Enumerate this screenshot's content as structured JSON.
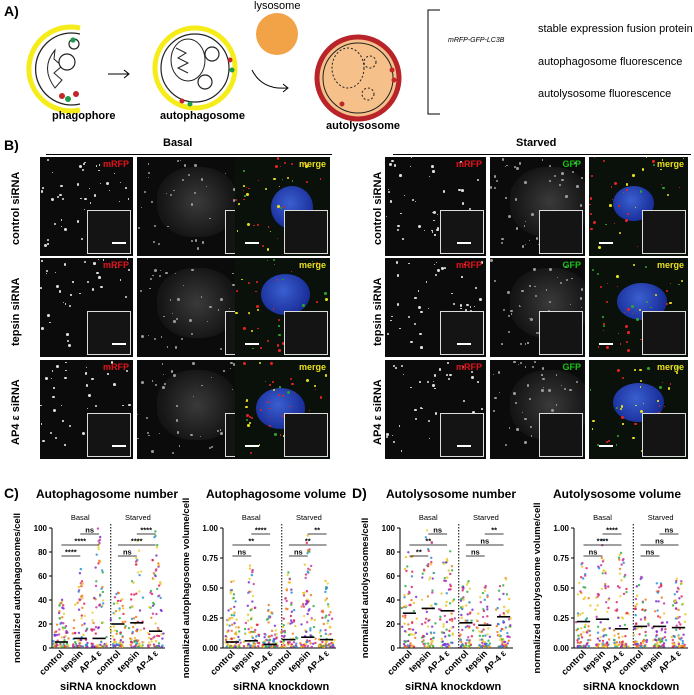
{
  "panel_labels": {
    "a": "A)",
    "b": "B)",
    "c": "C)",
    "d": "D)"
  },
  "schematic": {
    "stages": [
      "phagophore",
      "autophagosome",
      "autolysosome"
    ],
    "lysosome_label": "lysosome",
    "legend": {
      "fusion_construct": "mRFP-GFP-LC3B",
      "items": [
        "stable expression fusion protein",
        "autophagosome fluorescence",
        "autolysosome fluorescence"
      ],
      "colors": {
        "red": "#c0262a",
        "green": "#1e9a4a",
        "grey": "#6b6b6b",
        "yellow": "#f5ec19",
        "lysosome": "#f2a348"
      }
    }
  },
  "microscopy": {
    "conditions": [
      "Basal",
      "Starved"
    ],
    "channels": [
      "mRFP",
      "GFP",
      "merge"
    ],
    "channel_colors": {
      "mRFP": "#e3131b",
      "GFP": "#19c319",
      "merge": "#e8e01d"
    },
    "rows": [
      "control siRNA",
      "tepsin siRNA",
      "AP4 ε siRNA"
    ]
  },
  "charts": [
    {
      "id": "c1",
      "title": "Autophagosome number",
      "ylabel": "normalized autophagosomes/cell",
      "groups": [
        "Basal",
        "Starved"
      ],
      "xlabel": "siRNA knockdown",
      "chart_data": {
        "type": "scatter",
        "categories": [
          "control",
          "tepsin",
          "AP-4 ε",
          "control",
          "tepsin",
          "AP-4 ε"
        ],
        "ylim": [
          0,
          100
        ],
        "yticks": [
          "0",
          "20",
          "40",
          "60",
          "80",
          "100"
        ],
        "medians": [
          5,
          8,
          8,
          20,
          21,
          14
        ],
        "spread_max": [
          40,
          68,
          100,
          45,
          90,
          100
        ]
      },
      "sig": [
        "****",
        "****",
        "ns",
        "ns",
        "****",
        "****"
      ]
    },
    {
      "id": "c2",
      "title": "Autophagosome volume",
      "ylabel": "normalized autophagosome volume/cell",
      "groups": [
        "Basal",
        "Starved"
      ],
      "xlabel": "siRNA knockdown",
      "chart_data": {
        "type": "scatter",
        "categories": [
          "control",
          "tepsin",
          "AP-4 ε",
          "control",
          "tepsin",
          "AP-4 ε"
        ],
        "ylim": [
          0,
          1
        ],
        "yticks": [
          "0.00",
          "0.25",
          "0.50",
          "0.75",
          "1.00"
        ],
        "medians": [
          0.05,
          0.06,
          0.03,
          0.07,
          0.09,
          0.07
        ],
        "spread_max": [
          0.55,
          0.68,
          0.38,
          0.65,
          1.0,
          0.55
        ]
      },
      "sig": [
        "ns",
        "**",
        "****",
        "ns",
        "**",
        "**"
      ]
    },
    {
      "id": "d1",
      "title": "Autolysosome number",
      "ylabel": "normalized autolysosomes/cell",
      "groups": [
        "Basal",
        "Starved"
      ],
      "xlabel": "siRNA knockdown",
      "chart_data": {
        "type": "scatter",
        "categories": [
          "control",
          "tepsin",
          "AP-4 ε",
          "control",
          "tepsin",
          "AP-4 ε"
        ],
        "ylim": [
          0,
          100
        ],
        "yticks": [
          "0",
          "20",
          "40",
          "60",
          "80",
          "100"
        ],
        "medians": [
          29,
          33,
          31,
          21,
          19,
          26
        ],
        "spread_max": [
          80,
          98,
          90,
          55,
          52,
          60
        ]
      },
      "sig": [
        "**",
        "**",
        "ns",
        "ns",
        "ns",
        "**"
      ]
    },
    {
      "id": "d2",
      "title": "Autolysosome volume",
      "ylabel": "normalized autolysosome volume/cell",
      "groups": [
        "Basal",
        "Starved"
      ],
      "xlabel": "siRNA knockdown",
      "chart_data": {
        "type": "scatter",
        "categories": [
          "control",
          "tepsin",
          "AP-4 ε",
          "control",
          "tepsin",
          "AP-4 ε"
        ],
        "ylim": [
          0,
          1
        ],
        "yticks": [
          "0.00",
          "0.25",
          "0.50",
          "0.75",
          "1.00"
        ],
        "medians": [
          0.22,
          0.24,
          0.16,
          0.18,
          0.18,
          0.17
        ],
        "spread_max": [
          0.7,
          0.9,
          0.85,
          0.6,
          0.55,
          0.58
        ]
      },
      "sig": [
        "ns",
        "****",
        "****",
        "ns",
        "ns",
        "ns"
      ]
    }
  ]
}
